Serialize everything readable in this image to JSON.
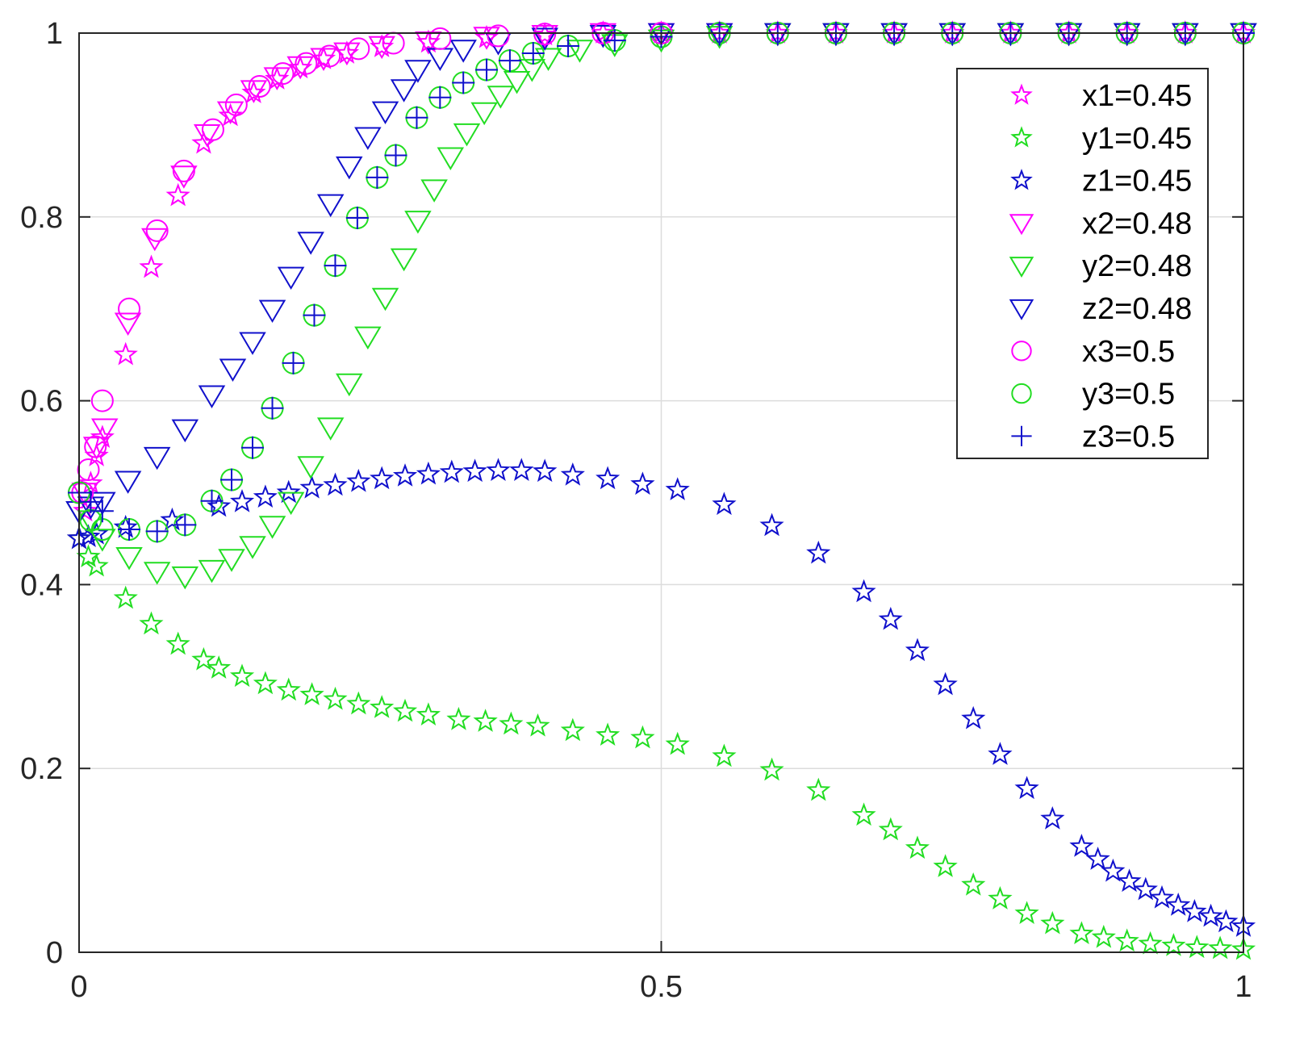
{
  "chart_data": {
    "type": "scatter",
    "title": "",
    "xlabel": "",
    "ylabel": "",
    "xlim": [
      0,
      1
    ],
    "ylim": [
      0,
      1
    ],
    "xticks": [
      "0",
      "0.5",
      "1"
    ],
    "yticks": [
      "0",
      "0.2",
      "0.4",
      "0.6",
      "0.8",
      "1"
    ],
    "grid": true,
    "legend_position": "top-right",
    "series": [
      {
        "name": "x1=0.45",
        "marker": "star",
        "color": "#ff00ff",
        "x": [
          0,
          0.005,
          0.01,
          0.015,
          0.02,
          0.04,
          0.062,
          0.085,
          0.107,
          0.13,
          0.15,
          0.17,
          0.19,
          0.21,
          0.23,
          0.26,
          0.3,
          0.35,
          0.4,
          0.45,
          0.5,
          0.55,
          0.6,
          0.65,
          0.7,
          0.75,
          0.8,
          0.85,
          0.9,
          0.95,
          1
        ],
        "y": [
          0.45,
          0.48,
          0.51,
          0.54,
          0.56,
          0.65,
          0.745,
          0.823,
          0.88,
          0.91,
          0.935,
          0.95,
          0.962,
          0.972,
          0.978,
          0.985,
          0.99,
          0.995,
          0.998,
          1,
          1,
          1,
          1,
          1,
          1,
          1,
          1,
          1,
          1,
          1,
          1
        ]
      },
      {
        "name": "y1=0.45",
        "marker": "star",
        "color": "#22dd22",
        "x": [
          0,
          0.008,
          0.015,
          0.04,
          0.062,
          0.085,
          0.107,
          0.12,
          0.14,
          0.16,
          0.18,
          0.2,
          0.22,
          0.24,
          0.26,
          0.28,
          0.3,
          0.326,
          0.349,
          0.371,
          0.394,
          0.424,
          0.454,
          0.484,
          0.514,
          0.554,
          0.595,
          0.635,
          0.674,
          0.697,
          0.72,
          0.744,
          0.768,
          0.791,
          0.814,
          0.836,
          0.861,
          0.88,
          0.9,
          0.92,
          0.94,
          0.96,
          0.98,
          1
        ],
        "y": [
          0.45,
          0.43,
          0.42,
          0.385,
          0.357,
          0.335,
          0.318,
          0.309,
          0.3,
          0.292,
          0.285,
          0.28,
          0.275,
          0.27,
          0.266,
          0.262,
          0.258,
          0.253,
          0.251,
          0.248,
          0.246,
          0.241,
          0.236,
          0.233,
          0.226,
          0.213,
          0.198,
          0.176,
          0.149,
          0.133,
          0.113,
          0.093,
          0.073,
          0.058,
          0.042,
          0.031,
          0.02,
          0.016,
          0.012,
          0.009,
          0.007,
          0.005,
          0.004,
          0.003
        ]
      },
      {
        "name": "z1=0.45",
        "marker": "star",
        "color": "#1010cc",
        "x": [
          0,
          0.008,
          0.015,
          0.04,
          0.08,
          0.12,
          0.14,
          0.16,
          0.18,
          0.2,
          0.22,
          0.24,
          0.26,
          0.28,
          0.3,
          0.32,
          0.34,
          0.36,
          0.38,
          0.4,
          0.424,
          0.454,
          0.484,
          0.514,
          0.554,
          0.595,
          0.635,
          0.674,
          0.697,
          0.72,
          0.744,
          0.768,
          0.791,
          0.814,
          0.836,
          0.861,
          0.875,
          0.888,
          0.902,
          0.916,
          0.93,
          0.944,
          0.958,
          0.972,
          0.985,
          1
        ],
        "y": [
          0.45,
          0.452,
          0.455,
          0.462,
          0.47,
          0.485,
          0.49,
          0.495,
          0.5,
          0.505,
          0.508,
          0.512,
          0.515,
          0.518,
          0.52,
          0.522,
          0.523,
          0.524,
          0.524,
          0.523,
          0.519,
          0.515,
          0.509,
          0.503,
          0.487,
          0.464,
          0.434,
          0.392,
          0.362,
          0.328,
          0.291,
          0.254,
          0.215,
          0.178,
          0.145,
          0.115,
          0.101,
          0.088,
          0.077,
          0.068,
          0.059,
          0.051,
          0.044,
          0.039,
          0.033,
          0.028
        ]
      },
      {
        "name": "x2=0.48",
        "marker": "triangle-down",
        "color": "#ff00ff",
        "x": [
          0,
          0.005,
          0.015,
          0.022,
          0.042,
          0.065,
          0.09,
          0.11,
          0.13,
          0.15,
          0.17,
          0.19,
          0.21,
          0.23,
          0.26,
          0.3,
          0.35,
          0.4,
          0.45,
          0.5,
          0.55,
          0.6,
          0.65,
          0.7,
          0.75,
          0.8,
          0.85,
          0.9,
          0.95,
          1
        ],
        "y": [
          0.48,
          0.5,
          0.55,
          0.57,
          0.685,
          0.777,
          0.845,
          0.89,
          0.915,
          0.938,
          0.952,
          0.964,
          0.973,
          0.979,
          0.986,
          0.991,
          0.996,
          0.998,
          1,
          1,
          1,
          1,
          1,
          1,
          1,
          1,
          1,
          1,
          1,
          1
        ]
      },
      {
        "name": "y2=0.48",
        "marker": "triangle-down",
        "color": "#22dd22",
        "x": [
          0,
          0.01,
          0.02,
          0.043,
          0.067,
          0.091,
          0.114,
          0.131,
          0.149,
          0.166,
          0.182,
          0.199,
          0.216,
          0.232,
          0.248,
          0.263,
          0.279,
          0.291,
          0.305,
          0.319,
          0.333,
          0.348,
          0.362,
          0.376,
          0.389,
          0.403,
          0.43,
          0.46,
          0.5,
          0.55,
          0.6,
          0.65,
          0.7,
          0.75,
          0.8,
          0.85,
          0.9,
          0.95,
          1
        ],
        "y": [
          0.48,
          0.47,
          0.45,
          0.43,
          0.414,
          0.409,
          0.416,
          0.428,
          0.442,
          0.464,
          0.49,
          0.529,
          0.571,
          0.619,
          0.67,
          0.712,
          0.755,
          0.796,
          0.83,
          0.865,
          0.891,
          0.914,
          0.932,
          0.948,
          0.961,
          0.973,
          0.982,
          0.988,
          0.993,
          0.997,
          1,
          1,
          1,
          1,
          1,
          1,
          1,
          1,
          1
        ]
      },
      {
        "name": "z2=0.48",
        "marker": "triangle-down",
        "color": "#1010cc",
        "x": [
          0,
          0.01,
          0.02,
          0.042,
          0.067,
          0.091,
          0.114,
          0.132,
          0.149,
          0.166,
          0.182,
          0.199,
          0.216,
          0.232,
          0.248,
          0.263,
          0.279,
          0.291,
          0.31,
          0.33,
          0.36,
          0.4,
          0.45,
          0.5,
          0.55,
          0.6,
          0.65,
          0.7,
          0.75,
          0.8,
          0.85,
          0.9,
          0.95,
          1
        ],
        "y": [
          0.48,
          0.485,
          0.49,
          0.513,
          0.539,
          0.569,
          0.606,
          0.635,
          0.664,
          0.699,
          0.735,
          0.773,
          0.814,
          0.855,
          0.887,
          0.915,
          0.939,
          0.96,
          0.973,
          0.982,
          0.99,
          0.995,
          0.998,
          1,
          1,
          1,
          1,
          1,
          1,
          1,
          1,
          1,
          1,
          1
        ]
      },
      {
        "name": "x3=0.5",
        "marker": "circle",
        "color": "#ff00ff",
        "x": [
          0,
          0.003,
          0.008,
          0.014,
          0.02,
          0.043,
          0.067,
          0.09,
          0.115,
          0.135,
          0.155,
          0.175,
          0.195,
          0.215,
          0.24,
          0.27,
          0.31,
          0.36,
          0.4,
          0.45,
          0.5,
          0.55,
          0.6,
          0.65,
          0.7,
          0.75,
          0.8,
          0.85,
          0.9,
          0.95,
          1
        ],
        "y": [
          0.5,
          0.5,
          0.525,
          0.55,
          0.6,
          0.7,
          0.785,
          0.85,
          0.895,
          0.922,
          0.942,
          0.956,
          0.967,
          0.975,
          0.983,
          0.989,
          0.994,
          0.997,
          0.999,
          1,
          1,
          1,
          1,
          1,
          1,
          1,
          1,
          1,
          1,
          1,
          1
        ]
      },
      {
        "name": "y3=0.5",
        "marker": "circle",
        "color": "#22dd22",
        "x": [
          0,
          0.01,
          0.02,
          0.043,
          0.067,
          0.091,
          0.114,
          0.131,
          0.149,
          0.166,
          0.184,
          0.202,
          0.22,
          0.239,
          0.256,
          0.272,
          0.29,
          0.31,
          0.33,
          0.35,
          0.37,
          0.39,
          0.42,
          0.46,
          0.5,
          0.55,
          0.6,
          0.65,
          0.7,
          0.75,
          0.8,
          0.85,
          0.9,
          0.95,
          1
        ],
        "y": [
          0.5,
          0.47,
          0.46,
          0.46,
          0.458,
          0.465,
          0.491,
          0.514,
          0.549,
          0.592,
          0.641,
          0.693,
          0.747,
          0.799,
          0.843,
          0.867,
          0.908,
          0.93,
          0.946,
          0.96,
          0.97,
          0.978,
          0.986,
          0.992,
          0.996,
          1,
          1,
          1,
          1,
          1,
          1,
          1,
          1,
          1,
          1
        ]
      },
      {
        "name": "z3=0.5",
        "marker": "plus",
        "color": "#1010cc",
        "x": [
          0,
          0.01,
          0.02,
          0.043,
          0.067,
          0.091,
          0.114,
          0.131,
          0.149,
          0.166,
          0.184,
          0.202,
          0.22,
          0.239,
          0.256,
          0.272,
          0.29,
          0.31,
          0.33,
          0.35,
          0.37,
          0.39,
          0.42,
          0.46,
          0.5,
          0.55,
          0.6,
          0.65,
          0.7,
          0.75,
          0.8,
          0.85,
          0.9,
          0.95,
          1
        ],
        "y": [
          0.5,
          0.49,
          0.48,
          0.46,
          0.458,
          0.465,
          0.491,
          0.514,
          0.549,
          0.592,
          0.641,
          0.693,
          0.747,
          0.799,
          0.843,
          0.867,
          0.908,
          0.93,
          0.946,
          0.96,
          0.97,
          0.978,
          0.986,
          0.992,
          0.996,
          1,
          1,
          1,
          1,
          1,
          1,
          1,
          1,
          1,
          1
        ]
      }
    ]
  }
}
